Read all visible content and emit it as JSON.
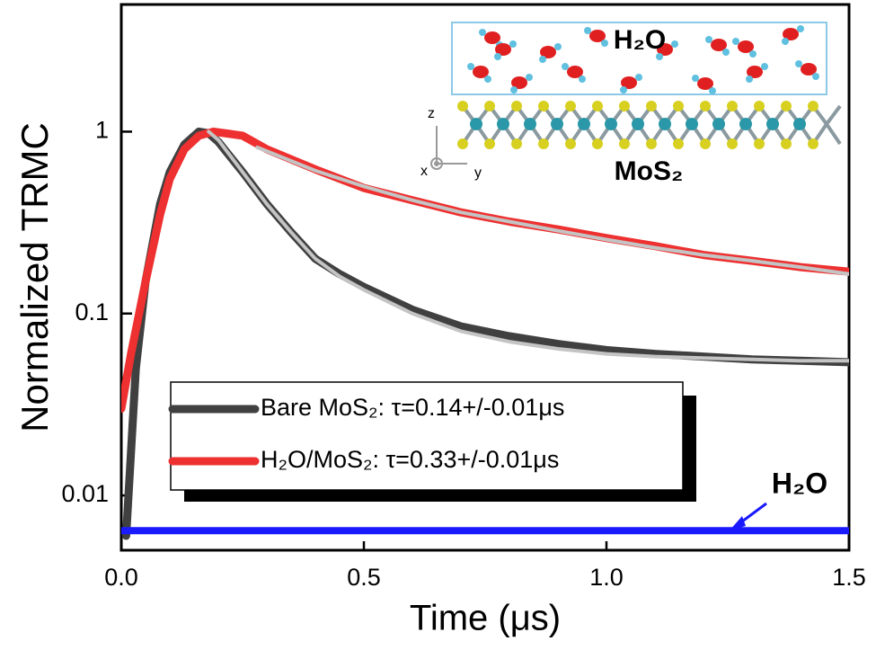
{
  "chart_data": {
    "type": "line",
    "xlabel": "Time (μs)",
    "ylabel": "Normalized TRMC",
    "xlim": [
      0,
      1.5
    ],
    "ylim": [
      0.005,
      5
    ],
    "yscale": "log",
    "xticks": [
      {
        "value": 0,
        "label": "0.0"
      },
      0.5,
      {
        "value": 1,
        "label": "1.0"
      },
      1.5
    ],
    "yticks": [
      0.01,
      0.1,
      1
    ],
    "series": [
      {
        "name": "Bare MoS₂: τ=0.14+/-0.01μs",
        "color": "#404040",
        "x": [
          0.01,
          0.03,
          0.05,
          0.08,
          0.1,
          0.13,
          0.16,
          0.18,
          0.2,
          0.25,
          0.3,
          0.35,
          0.4,
          0.45,
          0.5,
          0.6,
          0.7,
          0.8,
          0.9,
          1.0,
          1.1,
          1.2,
          1.3,
          1.4,
          1.5
        ],
        "values": [
          0.006,
          0.05,
          0.15,
          0.4,
          0.6,
          0.85,
          1.0,
          0.98,
          0.88,
          0.6,
          0.4,
          0.28,
          0.2,
          0.165,
          0.14,
          0.105,
          0.085,
          0.075,
          0.068,
          0.063,
          0.06,
          0.058,
          0.056,
          0.055,
          0.054
        ]
      },
      {
        "name": "H₂O/MoS₂: τ=0.33+/-0.01μs",
        "color": "#ee3030",
        "x": [
          0.0,
          0.02,
          0.05,
          0.08,
          0.1,
          0.13,
          0.16,
          0.19,
          0.25,
          0.3,
          0.4,
          0.5,
          0.6,
          0.7,
          0.8,
          0.9,
          1.0,
          1.1,
          1.2,
          1.3,
          1.4,
          1.5
        ],
        "values": [
          0.03,
          0.06,
          0.15,
          0.35,
          0.55,
          0.8,
          0.95,
          1.0,
          0.95,
          0.8,
          0.62,
          0.49,
          0.42,
          0.36,
          0.32,
          0.29,
          0.26,
          0.235,
          0.21,
          0.195,
          0.18,
          0.17
        ]
      },
      {
        "color": "#c4c4c4",
        "x": [
          0.18,
          0.2,
          0.25,
          0.3,
          0.35,
          0.4,
          0.45,
          0.5,
          0.6,
          0.7,
          0.8,
          0.9,
          1.0,
          1.1,
          1.2,
          1.3,
          1.4,
          1.5
        ],
        "values": [
          1.0,
          0.9,
          0.6,
          0.4,
          0.28,
          0.2,
          0.16,
          0.135,
          0.1,
          0.08,
          0.07,
          0.064,
          0.06,
          0.058,
          0.057,
          0.056,
          0.055,
          0.055
        ]
      },
      {
        "color": "#c4c4c4",
        "x": [
          0.28,
          0.4,
          0.5,
          0.6,
          0.7,
          0.8,
          0.9,
          1.0,
          1.1,
          1.2,
          1.3,
          1.4,
          1.5
        ],
        "values": [
          0.82,
          0.61,
          0.5,
          0.42,
          0.36,
          0.32,
          0.285,
          0.255,
          0.23,
          0.21,
          0.195,
          0.18,
          0.165
        ]
      },
      {
        "color": "#1a1aff",
        "x": [
          0.0,
          0.25,
          0.5,
          0.75,
          1.0,
          1.25,
          1.5
        ],
        "values": [
          0.0064,
          0.0064,
          0.0064,
          0.0064,
          0.0064,
          0.0064,
          0.0064
        ]
      }
    ],
    "annotations": [
      "H₂O",
      "H₂O",
      "MoS₂",
      "x",
      "y",
      "z"
    ]
  }
}
